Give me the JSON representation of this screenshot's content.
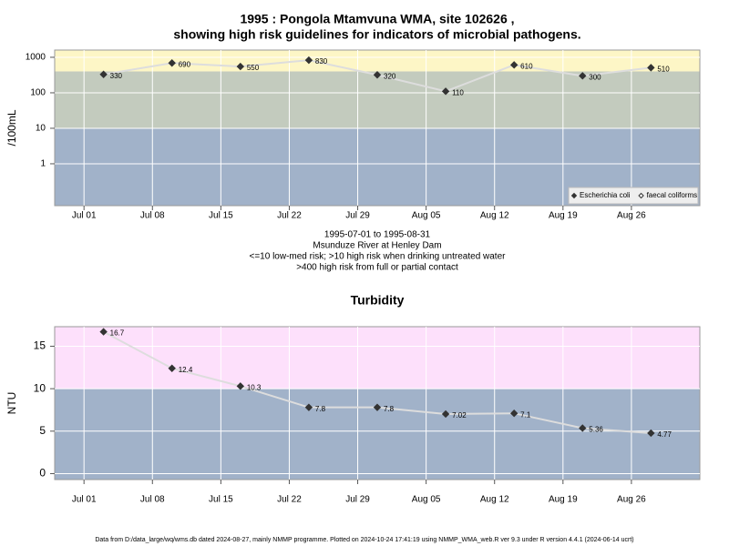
{
  "chart_data": [
    {
      "type": "line",
      "title": [
        "1995 : Pongola Mtamvuna WMA, site 102626 ,",
        "showing high risk guidelines for indicators of microbial pathogens."
      ],
      "caption": [
        "1995-07-01 to 1995-08-31",
        "Msunduze River at Henley Dam",
        "<=10 low-med risk; >10 high risk when drinking untreated water",
        ">400 high risk from full or partial contact"
      ],
      "y_label": "/100mL",
      "log_y": true,
      "x": [
        "1995-07-03",
        "1995-07-10",
        "1995-07-17",
        "1995-07-24",
        "1995-07-31",
        "1995-08-07",
        "1995-08-14",
        "1995-08-21",
        "1995-08-28"
      ],
      "xlim": [
        "1995-06-28",
        "1995-09-02"
      ],
      "xticks": [
        {
          "value": "1995-07-01",
          "label": "Jul 01"
        },
        {
          "value": "1995-07-08",
          "label": "Jul 08"
        },
        {
          "value": "1995-07-15",
          "label": "Jul 15"
        },
        {
          "value": "1995-07-22",
          "label": "Jul 22"
        },
        {
          "value": "1995-07-29",
          "label": "Jul 29"
        },
        {
          "value": "1995-08-05",
          "label": "Aug 05"
        },
        {
          "value": "1995-08-12",
          "label": "Aug 12"
        },
        {
          "value": "1995-08-19",
          "label": "Aug 19"
        },
        {
          "value": "1995-08-26",
          "label": "Aug 26"
        }
      ],
      "ylim": [
        0.066,
        1600
      ],
      "yticks": [
        1,
        10,
        100,
        1000
      ],
      "grid": true,
      "bands": [
        {
          "from": 0.066,
          "to": 10,
          "color": "#a1b2c9"
        },
        {
          "from": 10,
          "to": 400,
          "color": "#c3cbbe"
        },
        {
          "from": 400,
          "to": 1600,
          "color": "#fdf6c6"
        }
      ],
      "legend": "lower right",
      "series": [
        {
          "name": "Escherichia coli",
          "color": "#333333",
          "line_color": "#dddddd",
          "marker": "filled",
          "values": [
            330,
            690,
            550,
            830,
            320,
            110,
            610,
            300,
            510
          ]
        },
        {
          "name": "faecal coliforms",
          "color": "#333333",
          "line_color": "#dddddd",
          "marker": "open",
          "values": [
            null,
            null,
            null,
            null,
            null,
            null,
            null,
            null,
            null
          ]
        }
      ]
    },
    {
      "type": "line",
      "title": [
        "Turbidity"
      ],
      "y_label": "NTU",
      "log_y": false,
      "x": [
        "1995-07-03",
        "1995-07-10",
        "1995-07-17",
        "1995-07-24",
        "1995-07-31",
        "1995-08-07",
        "1995-08-14",
        "1995-08-21",
        "1995-08-28"
      ],
      "xlim": [
        "1995-06-28",
        "1995-09-02"
      ],
      "xticks": [
        {
          "value": "1995-07-01",
          "label": "Jul 01"
        },
        {
          "value": "1995-07-08",
          "label": "Jul 08"
        },
        {
          "value": "1995-07-15",
          "label": "Jul 15"
        },
        {
          "value": "1995-07-22",
          "label": "Jul 22"
        },
        {
          "value": "1995-07-29",
          "label": "Jul 29"
        },
        {
          "value": "1995-08-05",
          "label": "Aug 05"
        },
        {
          "value": "1995-08-12",
          "label": "Aug 12"
        },
        {
          "value": "1995-08-19",
          "label": "Aug 19"
        },
        {
          "value": "1995-08-26",
          "label": "Aug 26"
        }
      ],
      "ylim": [
        -0.7,
        17.3
      ],
      "yticks": [
        0,
        5,
        10,
        15
      ],
      "grid": true,
      "bands": [
        {
          "from": -0.7,
          "to": 10,
          "color": "#a1b2c9"
        },
        {
          "from": 10,
          "to": 17.3,
          "color": "#fde0fb"
        }
      ],
      "series": [
        {
          "name": "Turbidity",
          "color": "#333333",
          "line_color": "#dddddd",
          "marker": "filled",
          "values": [
            16.7,
            12.4,
            10.3,
            7.8,
            7.8,
            7.02,
            7.1,
            5.36,
            4.77
          ]
        }
      ]
    }
  ],
  "footer": "Data from D:/data_large/wq/wms.db dated 2024-08-27, mainly NMMP programme. Plotted on 2024-10-24 17:41:19 using NMMP_WMA_web.R ver 9.3 under R version 4.4.1 (2024-06-14 ucrt)"
}
